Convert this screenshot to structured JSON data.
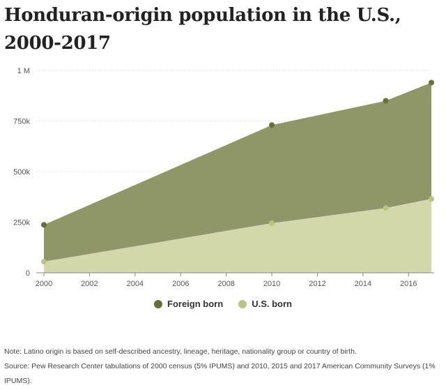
{
  "title": "Honduran-origin population in the U.S., 2000-2017",
  "legend": {
    "foreign_born": "Foreign born",
    "us_born": "U.S. born"
  },
  "notes": {
    "note": "Note: Latino origin is based on self-described ancestry, lineage, heritage, nationality group or country of birth.",
    "source": "Source: Pew Research Center tabulations of 2000 census (5% IPUMS) and 2010, 2015 and 2017 American Community Surveys (1% IPUMS)."
  },
  "colors": {
    "foreign_born_fill": "#8f9768",
    "foreign_born_marker": "#67703a",
    "us_born_fill": "#d2d8a9",
    "us_born_marker": "#b9c385",
    "grid": "#dddddd",
    "axis": "#888888"
  },
  "chart_data": {
    "type": "area",
    "stacked": true,
    "title": "Honduran-origin population in the U.S., 2000-2017",
    "x": [
      2000,
      2010,
      2015,
      2017
    ],
    "xticks": [
      2000,
      2002,
      2004,
      2006,
      2008,
      2010,
      2012,
      2014,
      2016
    ],
    "xlim": [
      2000,
      2017
    ],
    "yticks": [
      0,
      250000,
      500000,
      750000,
      1000000
    ],
    "ytick_labels": [
      "0",
      "250k",
      "500k",
      "750k",
      "1 M"
    ],
    "ylim": [
      0,
      1000000
    ],
    "grid": "horizontal dotted",
    "legend_position": "bottom-center",
    "series": [
      {
        "name": "U.S. born",
        "values": [
          55000,
          245000,
          320000,
          365000
        ]
      },
      {
        "name": "Foreign born",
        "values": [
          182000,
          485000,
          530000,
          575000
        ]
      }
    ],
    "totals": [
      237000,
      730000,
      850000,
      940000
    ]
  }
}
